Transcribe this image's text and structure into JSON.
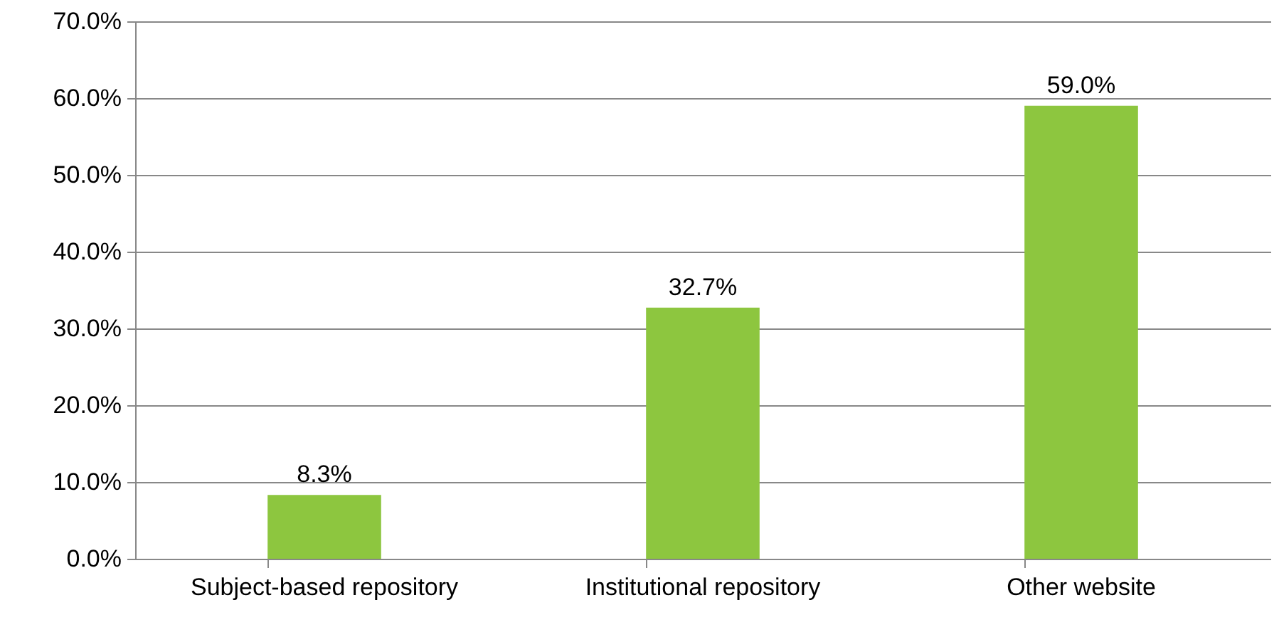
{
  "chart_data": {
    "type": "bar",
    "categories": [
      "Subject-based repository",
      "Institutional repository",
      "Other website"
    ],
    "values": [
      8.3,
      32.7,
      59.0
    ],
    "value_labels": [
      "8.3%",
      "32.7%",
      "59.0%"
    ],
    "color": "#8dc63f",
    "ylim": [
      0,
      70
    ],
    "yticks": [
      {
        "value": 0,
        "label": "0.0%"
      },
      {
        "value": 10,
        "label": "10.0%"
      },
      {
        "value": 20,
        "label": "20.0%"
      },
      {
        "value": 30,
        "label": "30.0%"
      },
      {
        "value": 40,
        "label": "40.0%"
      },
      {
        "value": 50,
        "label": "50.0%"
      },
      {
        "value": 60,
        "label": "60.0%"
      },
      {
        "value": 70,
        "label": "70.0%"
      }
    ],
    "grid": "y"
  }
}
